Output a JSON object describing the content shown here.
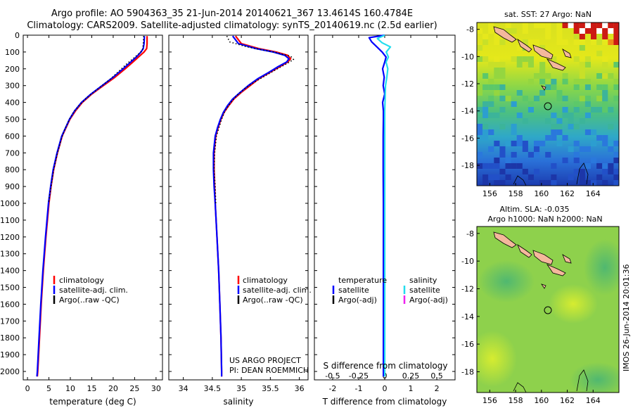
{
  "header": {
    "line1": "Argo profile: AO 5904363_35 21-Jun-2014 20140621_367 13.4614S 160.4784E",
    "line2": "Climatology: CARS2009. Satellite-adjusted climatology: synTS_20140619.nc (2.5d earlier)"
  },
  "colors": {
    "climatology": "#ff0000",
    "satellite": "#0000ff",
    "argo": "#000000",
    "sal_satellite": "#22ddee",
    "sal_argo": "#ee22ee"
  },
  "depth_axis": {
    "ticks": [
      "0",
      "100",
      "200",
      "300",
      "400",
      "500",
      "600",
      "700",
      "800",
      "900",
      "1000",
      "1100",
      "1200",
      "1300",
      "1400",
      "1500",
      "1600",
      "1700",
      "1800",
      "1900",
      "2000"
    ]
  },
  "chart_data": [
    {
      "type": "line",
      "name": "temperature",
      "xlabel": "temperature (deg C)",
      "ylabel": "depth",
      "xlim": [
        -1,
        31.5
      ],
      "ylim": [
        2050,
        0
      ],
      "xticks": [
        "0",
        "5",
        "10",
        "15",
        "20",
        "25",
        "30"
      ],
      "legend": [
        "climatology",
        "satellite-adj. clim.",
        "Argo(..raw -QC)"
      ],
      "series": [
        {
          "name": "climatology",
          "color": "#ff0000",
          "depth": [
            5,
            50,
            80,
            100,
            130,
            160,
            200,
            250,
            300,
            350,
            400,
            450,
            500,
            600,
            700,
            800,
            900,
            1000,
            1200,
            1400,
            1600,
            1800,
            2000,
            2030
          ],
          "values": [
            27.9,
            27.9,
            27.8,
            27.2,
            25.9,
            24.6,
            22.8,
            20.4,
            17.7,
            15.0,
            12.8,
            11.2,
            9.9,
            8.1,
            7.0,
            6.1,
            5.5,
            5.0,
            4.3,
            3.7,
            3.2,
            2.8,
            2.4,
            2.3
          ]
        },
        {
          "name": "satellite-adj. clim.",
          "color": "#0000ff",
          "depth": [
            5,
            50,
            80,
            100,
            130,
            160,
            200,
            250,
            300,
            350,
            400,
            450,
            500,
            600,
            700,
            800,
            900,
            1000,
            1200,
            1400,
            1600,
            1800,
            2000,
            2030
          ],
          "values": [
            27.3,
            27.2,
            27.0,
            26.5,
            25.4,
            24.1,
            22.3,
            20.0,
            17.4,
            14.8,
            12.6,
            11.0,
            9.8,
            8.0,
            6.9,
            6.0,
            5.4,
            4.9,
            4.2,
            3.6,
            3.1,
            2.7,
            2.3,
            2.2
          ]
        },
        {
          "name": "Argo(..raw -QC)",
          "color": "#000000",
          "depth": [
            5,
            60,
            90,
            110,
            140,
            170,
            210,
            260,
            310,
            360,
            410,
            460,
            510,
            560,
            610,
            700,
            800,
            900,
            1000
          ],
          "values": [
            27.1,
            27.0,
            26.8,
            26.0,
            24.6,
            23.2,
            21.5,
            19.4,
            16.9,
            14.4,
            12.3,
            10.7,
            9.6,
            8.7,
            8.0,
            7.0,
            6.1,
            5.5,
            4.9
          ]
        }
      ]
    },
    {
      "type": "line",
      "name": "salinity",
      "xlabel": "salinity",
      "ylabel": "depth",
      "xlim": [
        33.75,
        36.15
      ],
      "ylim": [
        2050,
        0
      ],
      "xticks": [
        "34",
        "34.5",
        "35",
        "35.5",
        "36"
      ],
      "legend": [
        "climatology",
        "satellite-adj. clim.",
        "Argo(..raw -QC)"
      ],
      "series": [
        {
          "name": "climatology",
          "color": "#ff0000",
          "depth": [
            5,
            50,
            80,
            100,
            120,
            140,
            160,
            190,
            220,
            260,
            300,
            340,
            380,
            420,
            460,
            500,
            550,
            600,
            700,
            800,
            900,
            1000,
            1200,
            1400,
            1600,
            1800,
            2000,
            2030
          ],
          "values": [
            34.9,
            35.0,
            35.3,
            35.6,
            35.8,
            35.85,
            35.8,
            35.65,
            35.5,
            35.3,
            35.15,
            35.0,
            34.87,
            34.78,
            34.7,
            34.65,
            34.6,
            34.56,
            34.53,
            34.53,
            34.54,
            34.55,
            34.58,
            34.61,
            34.63,
            34.65,
            34.66,
            34.66
          ]
        },
        {
          "name": "satellite-adj. clim.",
          "color": "#0000ff",
          "depth": [
            5,
            50,
            80,
            100,
            120,
            140,
            160,
            190,
            220,
            260,
            300,
            340,
            380,
            420,
            460,
            500,
            550,
            600,
            700,
            800,
            900,
            1000,
            1200,
            1400,
            1600,
            1800,
            2000,
            2030
          ],
          "values": [
            34.85,
            34.95,
            35.25,
            35.55,
            35.75,
            35.82,
            35.78,
            35.62,
            35.48,
            35.28,
            35.12,
            34.98,
            34.85,
            34.76,
            34.69,
            34.64,
            34.59,
            34.55,
            34.52,
            34.52,
            34.53,
            34.55,
            34.58,
            34.61,
            34.63,
            34.65,
            34.66,
            34.66
          ]
        },
        {
          "name": "Argo(..raw -QC)",
          "color": "#000000",
          "depth": [
            5,
            40,
            70,
            100,
            125,
            145,
            170,
            200,
            240,
            280,
            320,
            360,
            400,
            450,
            500,
            600,
            700,
            800,
            900,
            1000
          ],
          "values": [
            34.75,
            34.8,
            35.1,
            35.55,
            35.85,
            35.9,
            35.78,
            35.62,
            35.42,
            35.22,
            35.05,
            34.92,
            34.82,
            34.72,
            34.66,
            34.57,
            34.54,
            34.53,
            34.55,
            34.56
          ]
        }
      ]
    },
    {
      "type": "line",
      "name": "differences",
      "xlabel_top": "S difference from climatology",
      "xlabel": "T difference from climatology",
      "ylabel": "depth",
      "xlim": [
        -2.7,
        2.7
      ],
      "ylim": [
        2050,
        0
      ],
      "xticks_top": [
        "-0.5",
        "-0.25",
        "0",
        "0.25",
        "0.5"
      ],
      "xticks": [
        "-2",
        "-1",
        "0",
        "1",
        "2"
      ],
      "legend_temperature": {
        "title": "temperature",
        "items": [
          "satellite",
          "Argo(-adj)"
        ]
      },
      "legend_salinity": {
        "title": "salinity",
        "items": [
          "satellite",
          "Argo(-adj)"
        ]
      },
      "series": [
        {
          "name": "temperature satellite",
          "color": "#0000ff",
          "depth": [
            0,
            15,
            40,
            70,
            100,
            130,
            160,
            200,
            250,
            300,
            350,
            400,
            450,
            500,
            600,
            800,
            1000,
            1200,
            1500,
            2030
          ],
          "values": [
            0.0,
            -0.6,
            -0.5,
            -0.3,
            -0.1,
            0.05,
            0.0,
            -0.08,
            -0.02,
            -0.06,
            0.0,
            -0.08,
            -0.05,
            -0.05,
            -0.06,
            -0.06,
            -0.05,
            -0.05,
            -0.05,
            -0.05
          ]
        },
        {
          "name": "salinity satellite",
          "color": "#22ddee",
          "depth": [
            0,
            20,
            45,
            70,
            100,
            130,
            160,
            200,
            250,
            300,
            350,
            400,
            450,
            500,
            600,
            800,
            1000,
            1200,
            1500,
            2030
          ],
          "values": [
            0.0,
            -0.28,
            -0.1,
            0.22,
            0.06,
            0.14,
            0.05,
            0.12,
            0.08,
            0.03,
            0.02,
            0.01,
            0.0,
            0.0,
            0.0,
            0.0,
            0.0,
            0.0,
            0.0,
            0.0
          ]
        }
      ]
    },
    {
      "type": "heatmap",
      "name": "sst_map",
      "title": "sat. SST: 27 Argo: NaN",
      "xticks": [
        "156",
        "158",
        "160",
        "162",
        "164"
      ],
      "yticks": [
        "-8",
        "-10",
        "-12",
        "-14",
        "-16",
        "-18"
      ],
      "xlim": [
        155,
        166
      ],
      "ylim": [
        -19.5,
        -7.5
      ],
      "argo_position": {
        "lon": 160.4784,
        "lat": -13.4614
      }
    },
    {
      "type": "heatmap",
      "name": "sla_map",
      "title_line1": "Altim. SLA: -0.035",
      "title_line2": "Argo h1000: NaN h2000: NaN",
      "xticks": [
        "156",
        "158",
        "160",
        "162",
        "164"
      ],
      "yticks": [
        "-8",
        "-10",
        "-12",
        "-14",
        "-16",
        "-18"
      ],
      "xlim": [
        155,
        166
      ],
      "ylim": [
        -19.5,
        -7.5
      ],
      "argo_position": {
        "lon": 160.4784,
        "lat": -13.4614
      }
    }
  ],
  "annotations": {
    "project_line1": "US ARGO PROJECT",
    "project_line2": "PI: DEAN ROEMMICH",
    "timestamp": "IMOS 26-Jun-2014 20:01:36"
  }
}
